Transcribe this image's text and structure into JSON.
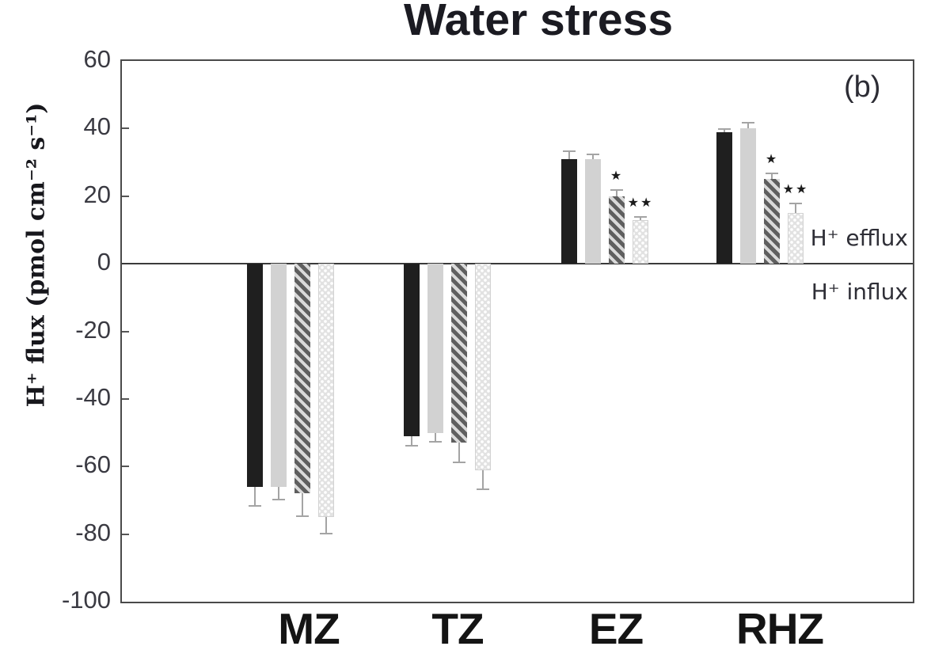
{
  "chart_data": {
    "type": "bar",
    "title": "Water stress",
    "panel": "(b)",
    "ylabel": "H⁺ flux (pmol cm⁻² s⁻¹)",
    "xlabel": "",
    "ylim": [
      -100,
      60
    ],
    "yticks": [
      60,
      40,
      20,
      0,
      -20,
      -40,
      -60,
      -80,
      -100
    ],
    "baseline": 0,
    "grid": "off",
    "legend": "none",
    "categories": [
      "MZ",
      "TZ",
      "EZ",
      "RHZ"
    ],
    "series": [
      {
        "name": "series-1",
        "pattern": "solid-black",
        "values": [
          -66,
          -51,
          31,
          39
        ],
        "errors": [
          6,
          3,
          2.5,
          1
        ],
        "significance": [
          null,
          null,
          null,
          null
        ]
      },
      {
        "name": "series-2",
        "pattern": "solid-light-gray",
        "values": [
          -66,
          -50,
          31,
          40
        ],
        "errors": [
          4,
          3,
          1.5,
          2
        ],
        "significance": [
          null,
          null,
          null,
          null
        ]
      },
      {
        "name": "series-3",
        "pattern": "diagonal-hatch",
        "values": [
          -68,
          -53,
          20,
          25
        ],
        "errors": [
          7,
          6,
          2,
          2
        ],
        "significance": [
          null,
          null,
          "★",
          "★"
        ]
      },
      {
        "name": "series-4",
        "pattern": "dotted-lattice",
        "values": [
          -75,
          -61,
          13,
          15
        ],
        "errors": [
          5,
          6,
          1,
          3
        ],
        "significance": [
          null,
          null,
          "★★",
          "★★"
        ]
      }
    ],
    "annotations": {
      "efflux": "H⁺ efflux",
      "influx": "H⁺ influx"
    },
    "colors": {
      "black_bar": "#1f1f1f",
      "gray_bar": "#d2d2d2",
      "hatch_dark": "#5f5f5f",
      "dots_base": "#e2e2e2",
      "error_bar": "#a4a4a4",
      "axis": "#4a4a4a"
    }
  }
}
